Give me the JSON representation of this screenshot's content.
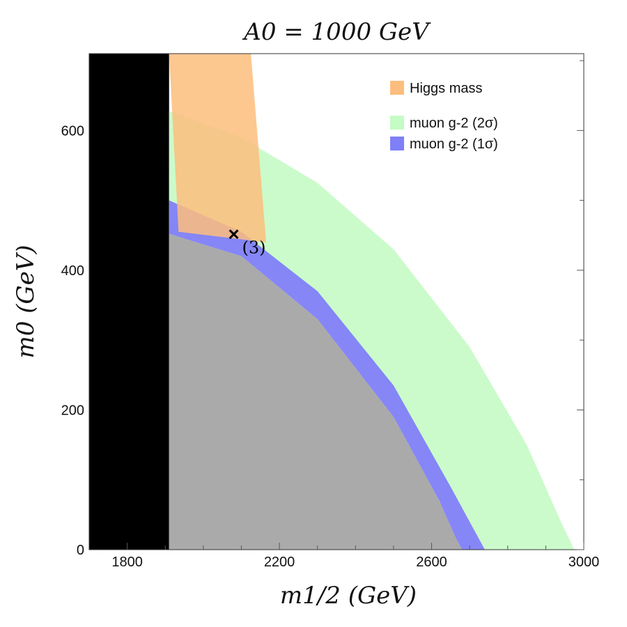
{
  "chart_data": {
    "type": "area",
    "title": "A0 = 1000 GeV",
    "xlabel": "m1/2 (GeV)",
    "ylabel": "m0 (GeV)",
    "xlim": [
      1700,
      3000
    ],
    "ylim": [
      0,
      710
    ],
    "x_ticks": [
      1800,
      2200,
      2600,
      3000
    ],
    "y_ticks": [
      0,
      200,
      400,
      600
    ],
    "grid": false,
    "legend_position": "top-right",
    "legend": [
      {
        "label": "Higgs mass",
        "color": "#fdbd7d"
      },
      {
        "label": "muon g-2 (2σ)",
        "color": "#c5fbc5"
      },
      {
        "label": "muon g-2 (1σ)",
        "color": "#7f7ff7"
      }
    ],
    "series": [
      {
        "name": "muon g-2 (2σ)",
        "color": "#c5fbc5",
        "outer_boundary": {
          "x": [
            1910,
            2100,
            2300,
            2500,
            2700,
            2850,
            2940,
            2975
          ],
          "y": [
            628,
            590,
            525,
            430,
            290,
            150,
            40,
            0
          ]
        },
        "inner_boundary": {
          "x": [
            1910,
            2100,
            2300,
            2500,
            2700,
            2740
          ],
          "y": [
            455,
            440,
            365,
            230,
            40,
            0
          ]
        }
      },
      {
        "name": "muon g-2 (1σ)",
        "color": "#7f7ff7",
        "outer_boundary": {
          "x": [
            1910,
            2100,
            2300,
            2500,
            2650,
            2715,
            2740
          ],
          "y": [
            500,
            455,
            370,
            235,
            90,
            25,
            0
          ]
        },
        "inner_boundary": {
          "x": [
            1910,
            2100,
            2300,
            2500,
            2620,
            2665,
            2680
          ],
          "y": [
            452,
            420,
            330,
            190,
            70,
            15,
            0
          ]
        }
      },
      {
        "name": "Higgs mass",
        "color": "#fdbd7d",
        "outer_boundary": {
          "x": [
            1910,
            2125
          ],
          "y": [
            710,
            710
          ]
        },
        "inner_boundary": {
          "x": [
            1935,
            2165
          ],
          "y": [
            455,
            440
          ]
        }
      }
    ],
    "excluded_regions": [
      {
        "color": "#000000",
        "x": [
          1700,
          1910
        ],
        "y": [
          0,
          710
        ]
      },
      {
        "color": "#aaaaaa",
        "boundary": {
          "x": [
            1910,
            2100,
            2300,
            2500,
            2620,
            2665,
            2680
          ],
          "y": [
            452,
            420,
            330,
            190,
            70,
            15,
            0
          ]
        }
      }
    ],
    "points": [
      {
        "x": 2080,
        "y": 452,
        "label": "(3)",
        "marker": "×"
      }
    ],
    "annotations": [
      {
        "text": "(3)"
      }
    ]
  }
}
